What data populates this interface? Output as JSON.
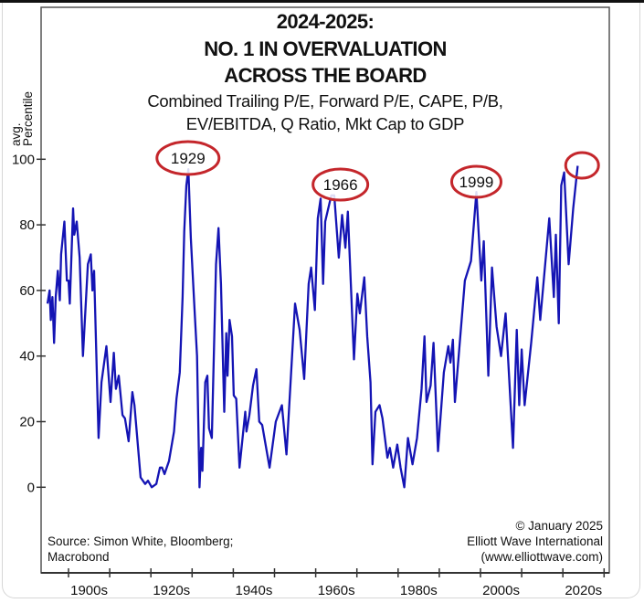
{
  "chart_data": {
    "type": "line",
    "title": "2024-2025:",
    "title_lines": [
      "NO. 1 IN OVERVALUATION",
      "ACROSS THE BOARD"
    ],
    "subtitle_lines": [
      "Combined Trailing P/E, Forward P/E, CAPE, P/B,",
      "EV/EBITDA, Q Ratio, Mkt Cap to GDP"
    ],
    "ylabel_lines": [
      "avg.",
      "Percentile"
    ],
    "xlabel": "",
    "ylim": [
      0,
      100
    ],
    "xlim": [
      1893.5,
      2031.5
    ],
    "yticks": [
      "0",
      "20",
      "40",
      "60",
      "80",
      "100"
    ],
    "xtick_labels": [
      "1900s",
      "1920s",
      "1940s",
      "1960s",
      "1980s",
      "2000s",
      "2020s"
    ],
    "grid": false,
    "line_color": "#1414b4",
    "annotation_color": "#c4262b",
    "annotations": [
      {
        "label": "1929",
        "year": 1929
      },
      {
        "label": "1966",
        "year": 1966
      },
      {
        "label": "1999",
        "year": 1999
      },
      {
        "label": "",
        "year": 2024
      }
    ],
    "series": [
      {
        "x": [
          1894.9,
          1895.4,
          1895.7,
          1896.1,
          1896.5,
          1896.9,
          1897.4,
          1897.9,
          1898.2,
          1899.0,
          1899.6,
          1900.0,
          1900.3,
          1901.1,
          1901.4,
          1902.0,
          1902.7,
          1903.5,
          1904.7,
          1905.4,
          1905.8,
          1906.2,
          1907.3,
          1908.0,
          1909.2,
          1910.2,
          1911.0,
          1911.5,
          1912.2,
          1913.1,
          1913.7,
          1914.6,
          1915.5,
          1916.0,
          1917.5,
          1918.6,
          1919.3,
          1920.2,
          1921.3,
          1922.2,
          1922.7,
          1923.3,
          1924.4,
          1925.6,
          1926.2,
          1927.0,
          1927.7,
          1928.1,
          1928.6,
          1929.1,
          1929.7,
          1930.6,
          1931.2,
          1931.8,
          1932.2,
          1932.5,
          1933.2,
          1933.7,
          1934.1,
          1934.8,
          1935.8,
          1936.4,
          1937.0,
          1937.8,
          1938.3,
          1938.6,
          1939.1,
          1939.7,
          1940.1,
          1940.7,
          1941.5,
          1942.9,
          1943.2,
          1943.9,
          1944.8,
          1945.6,
          1946.3,
          1947.0,
          1948.8,
          1950.3,
          1951.8,
          1952.9,
          1953.9,
          1955.0,
          1956.1,
          1957.2,
          1958.3,
          1958.9,
          1959.8,
          1960.5,
          1961.2,
          1961.8,
          1962.3,
          1963.8,
          1964.5,
          1965.6,
          1966.4,
          1967.2,
          1967.8,
          1969.3,
          1970.1,
          1970.7,
          1971.8,
          1972.5,
          1973.3,
          1973.8,
          1974.5,
          1975.5,
          1976.2,
          1977.4,
          1978.0,
          1978.8,
          1979.8,
          1980.6,
          1981.5,
          1982.4,
          1983.5,
          1984.6,
          1985.7,
          1986.4,
          1986.9,
          1987.9,
          1988.6,
          1989.7,
          1991.1,
          1992.2,
          1992.7,
          1993.3,
          1993.8,
          1996.2,
          1997.7,
          1999.0,
          2000.2,
          2000.8,
          2001.9,
          2002.8,
          2003.9,
          2005.0,
          2006.1,
          2007.9,
          2008.8,
          2009.4,
          2010.0,
          2010.7,
          2012.3,
          2013.8,
          2014.5,
          2016.7,
          2017.8,
          2018.3,
          2019.0,
          2019.6,
          2020.3,
          2021.4,
          2022.5,
          2023.6
        ],
        "values": [
          56,
          60,
          51,
          58,
          44,
          58,
          66,
          57,
          71,
          81,
          63,
          63,
          56,
          85,
          77,
          81,
          70,
          40,
          68,
          71,
          60,
          66,
          15,
          32,
          43,
          26,
          41,
          30,
          34,
          22,
          21,
          14,
          29,
          25,
          3,
          1,
          2,
          0,
          1,
          6,
          6,
          4,
          8,
          17,
          27,
          35,
          58,
          78,
          92,
          97,
          76,
          54,
          40,
          0,
          12,
          5,
          32,
          34,
          18,
          15,
          68,
          79,
          62,
          23,
          47,
          34,
          51,
          46,
          28,
          27,
          6,
          23,
          17,
          22,
          31,
          36,
          20,
          19,
          6,
          20,
          25,
          10,
          32,
          56,
          48,
          33,
          62,
          67,
          54,
          82,
          88,
          62,
          81,
          89,
          89,
          70,
          83,
          73,
          84,
          39,
          59,
          53,
          64,
          46,
          32,
          7,
          23,
          25,
          21,
          9,
          12,
          6,
          13,
          6,
          0,
          15,
          7,
          15,
          30,
          46,
          26,
          31,
          44,
          11,
          35,
          43,
          38,
          45,
          26,
          63,
          69,
          90,
          63,
          75,
          34,
          67,
          49,
          40,
          53,
          12,
          48,
          25,
          42,
          25,
          44,
          64,
          51,
          82,
          58,
          77,
          50,
          92,
          96,
          68,
          85,
          98
        ]
      }
    ],
    "source_lines": [
      "Source: Simon White, Bloomberg;",
      "Macrobond"
    ],
    "credit_lines": [
      "© January 2025",
      "Elliott Wave International",
      "(www.elliottwave.com)"
    ]
  }
}
